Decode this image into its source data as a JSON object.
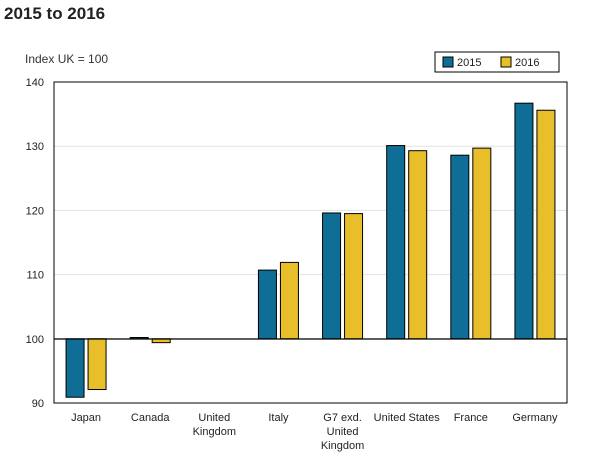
{
  "chart_data": {
    "type": "bar",
    "title": "2015 to 2016",
    "ylabel": "Index UK = 100",
    "xlabel": "",
    "ylim": [
      90,
      140
    ],
    "yticks": [
      90,
      100,
      110,
      120,
      130,
      140
    ],
    "baseline": 100,
    "grid": true,
    "legend_position": "top-right",
    "categories": [
      [
        "Japan"
      ],
      [
        "Canada"
      ],
      [
        "United",
        "Kingdom"
      ],
      [
        "Italy"
      ],
      [
        "G7 exd.",
        "United",
        "Kingdom"
      ],
      [
        "United States"
      ],
      [
        "France"
      ],
      [
        "Germany"
      ]
    ],
    "series": [
      {
        "name": "2015",
        "color": "#0f6e96",
        "values": [
          90.9,
          100.2,
          100,
          110.7,
          119.6,
          130.1,
          128.6,
          136.7
        ]
      },
      {
        "name": "2016",
        "color": "#e8bf2a",
        "values": [
          92.1,
          99.4,
          100,
          111.9,
          119.5,
          129.3,
          129.7,
          135.6
        ]
      }
    ]
  }
}
